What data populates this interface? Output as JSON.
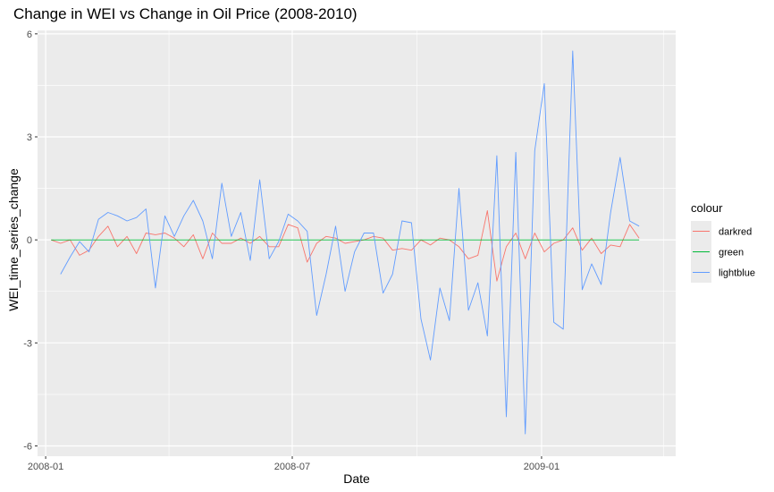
{
  "chart_data": {
    "type": "line",
    "title": "Change in WEI vs Change in Oil Price (2008-2010)",
    "xlabel": "Date",
    "ylabel": "WEI_time_series_change",
    "xlim": [
      "2007-12-26",
      "2009-04-10"
    ],
    "ylim": [
      -6.3,
      6.1
    ],
    "y_ticks": [
      6,
      3,
      0,
      -3,
      -6
    ],
    "x_ticks": [
      {
        "date": "2008-01-01",
        "label": "2008-01"
      },
      {
        "date": "2008-07-01",
        "label": "2008-07"
      },
      {
        "date": "2009-01-01",
        "label": "2009-01"
      }
    ],
    "x_minor_ticks": [
      "2008-04-01",
      "2008-10-01",
      "2009-04-01"
    ],
    "grid": true,
    "legend": {
      "title": "colour",
      "position": "right",
      "entries": [
        "darkred",
        "green",
        "lightblue"
      ]
    },
    "series": [
      {
        "name": "darkred",
        "color": "#F8766D",
        "points": [
          [
            "2008-01-05",
            0.0
          ],
          [
            "2008-01-12",
            -0.1
          ],
          [
            "2008-01-19",
            0.0
          ],
          [
            "2008-01-26",
            -0.45
          ],
          [
            "2008-02-02",
            -0.3
          ],
          [
            "2008-02-09",
            0.1
          ],
          [
            "2008-02-16",
            0.4
          ],
          [
            "2008-02-23",
            -0.2
          ],
          [
            "2008-03-01",
            0.1
          ],
          [
            "2008-03-08",
            -0.4
          ],
          [
            "2008-03-15",
            0.2
          ],
          [
            "2008-03-22",
            0.15
          ],
          [
            "2008-03-29",
            0.2
          ],
          [
            "2008-04-05",
            0.05
          ],
          [
            "2008-04-12",
            -0.2
          ],
          [
            "2008-04-19",
            0.15
          ],
          [
            "2008-04-26",
            -0.55
          ],
          [
            "2008-05-03",
            0.2
          ],
          [
            "2008-05-10",
            -0.1
          ],
          [
            "2008-05-17",
            -0.1
          ],
          [
            "2008-05-24",
            0.05
          ],
          [
            "2008-05-31",
            -0.1
          ],
          [
            "2008-06-07",
            0.1
          ],
          [
            "2008-06-14",
            -0.2
          ],
          [
            "2008-06-21",
            -0.2
          ],
          [
            "2008-06-28",
            0.45
          ],
          [
            "2008-07-05",
            0.35
          ],
          [
            "2008-07-12",
            -0.65
          ],
          [
            "2008-07-19",
            -0.1
          ],
          [
            "2008-07-26",
            0.1
          ],
          [
            "2008-08-02",
            0.05
          ],
          [
            "2008-08-09",
            -0.1
          ],
          [
            "2008-08-16",
            -0.05
          ],
          [
            "2008-08-23",
            0.0
          ],
          [
            "2008-08-30",
            0.1
          ],
          [
            "2008-09-06",
            0.05
          ],
          [
            "2008-09-13",
            -0.3
          ],
          [
            "2008-09-20",
            -0.25
          ],
          [
            "2008-09-27",
            -0.3
          ],
          [
            "2008-10-04",
            0.0
          ],
          [
            "2008-10-11",
            -0.15
          ],
          [
            "2008-10-18",
            0.05
          ],
          [
            "2008-10-25",
            0.0
          ],
          [
            "2008-11-01",
            -0.2
          ],
          [
            "2008-11-08",
            -0.55
          ],
          [
            "2008-11-15",
            -0.45
          ],
          [
            "2008-11-22",
            0.85
          ],
          [
            "2008-11-29",
            -1.2
          ],
          [
            "2008-12-06",
            -0.2
          ],
          [
            "2008-12-13",
            0.2
          ],
          [
            "2008-12-20",
            -0.55
          ],
          [
            "2008-12-27",
            0.2
          ],
          [
            "2009-01-03",
            -0.35
          ],
          [
            "2009-01-10",
            -0.1
          ],
          [
            "2009-01-17",
            0.0
          ],
          [
            "2009-01-24",
            0.35
          ],
          [
            "2009-01-31",
            -0.3
          ],
          [
            "2009-02-07",
            0.05
          ],
          [
            "2009-02-14",
            -0.4
          ],
          [
            "2009-02-21",
            -0.15
          ],
          [
            "2009-02-28",
            -0.2
          ],
          [
            "2009-03-07",
            0.45
          ],
          [
            "2009-03-14",
            0.05
          ]
        ]
      },
      {
        "name": "green",
        "color": "#00BA38",
        "points": [
          [
            "2008-01-05",
            0.0
          ],
          [
            "2009-03-14",
            0.0
          ]
        ]
      },
      {
        "name": "lightblue",
        "color": "#619CFF",
        "points": [
          [
            "2008-01-12",
            -1.0
          ],
          [
            "2008-01-19",
            -0.5
          ],
          [
            "2008-01-26",
            -0.05
          ],
          [
            "2008-02-02",
            -0.35
          ],
          [
            "2008-02-09",
            0.6
          ],
          [
            "2008-02-16",
            0.8
          ],
          [
            "2008-02-23",
            0.7
          ],
          [
            "2008-03-01",
            0.55
          ],
          [
            "2008-03-08",
            0.65
          ],
          [
            "2008-03-15",
            0.9
          ],
          [
            "2008-03-22",
            -1.4
          ],
          [
            "2008-03-29",
            0.7
          ],
          [
            "2008-04-05",
            0.1
          ],
          [
            "2008-04-12",
            0.7
          ],
          [
            "2008-04-19",
            1.15
          ],
          [
            "2008-04-26",
            0.55
          ],
          [
            "2008-05-03",
            -0.55
          ],
          [
            "2008-05-10",
            1.65
          ],
          [
            "2008-05-17",
            0.1
          ],
          [
            "2008-05-24",
            0.8
          ],
          [
            "2008-05-31",
            -0.6
          ],
          [
            "2008-06-07",
            1.75
          ],
          [
            "2008-06-14",
            -0.55
          ],
          [
            "2008-06-21",
            -0.05
          ],
          [
            "2008-06-28",
            0.75
          ],
          [
            "2008-07-05",
            0.55
          ],
          [
            "2008-07-12",
            0.25
          ],
          [
            "2008-07-19",
            -2.2
          ],
          [
            "2008-07-26",
            -1.0
          ],
          [
            "2008-08-02",
            0.4
          ],
          [
            "2008-08-09",
            -1.5
          ],
          [
            "2008-08-16",
            -0.35
          ],
          [
            "2008-08-23",
            0.2
          ],
          [
            "2008-08-30",
            0.2
          ],
          [
            "2008-09-06",
            -1.55
          ],
          [
            "2008-09-13",
            -1.0
          ],
          [
            "2008-09-20",
            0.55
          ],
          [
            "2008-09-27",
            0.5
          ],
          [
            "2008-10-04",
            -2.3
          ],
          [
            "2008-10-11",
            -3.5
          ],
          [
            "2008-10-18",
            -1.4
          ],
          [
            "2008-10-25",
            -2.35
          ],
          [
            "2008-11-01",
            1.5
          ],
          [
            "2008-11-08",
            -2.05
          ],
          [
            "2008-11-15",
            -1.25
          ],
          [
            "2008-11-22",
            -2.8
          ],
          [
            "2008-11-29",
            2.45
          ],
          [
            "2008-12-06",
            -5.15
          ],
          [
            "2008-12-13",
            2.55
          ],
          [
            "2008-12-20",
            -5.65
          ],
          [
            "2008-12-27",
            2.6
          ],
          [
            "2009-01-03",
            4.55
          ],
          [
            "2009-01-10",
            -2.4
          ],
          [
            "2009-01-17",
            -2.6
          ],
          [
            "2009-01-24",
            5.5
          ],
          [
            "2009-01-31",
            -1.45
          ],
          [
            "2009-02-07",
            -0.7
          ],
          [
            "2009-02-14",
            -1.3
          ],
          [
            "2009-02-21",
            0.8
          ],
          [
            "2009-02-28",
            2.4
          ],
          [
            "2009-03-07",
            0.55
          ],
          [
            "2009-03-14",
            0.4
          ]
        ]
      }
    ]
  }
}
